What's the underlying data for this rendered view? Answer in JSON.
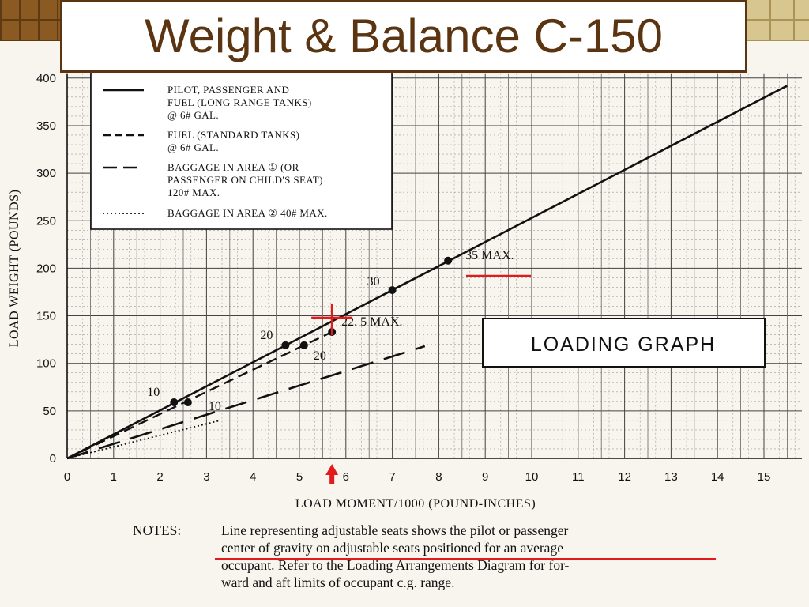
{
  "title": "Weight & Balance C-150",
  "colors": {
    "title": "#5b3512",
    "accent": "#e31a1c",
    "line": "#111111"
  },
  "chart_data": {
    "type": "line",
    "xlabel": "LOAD MOMENT/1000 (POUND-INCHES)",
    "ylabel": "LOAD WEIGHT (POUNDS)",
    "xlim": [
      0,
      15
    ],
    "ylim": [
      0,
      400
    ],
    "x_ticks": [
      0,
      1,
      2,
      3,
      4,
      5,
      6,
      7,
      8,
      9,
      10,
      11,
      12,
      13,
      14,
      15
    ],
    "y_ticks": [
      0,
      50,
      100,
      150,
      200,
      250,
      300,
      350,
      400
    ],
    "grid": true,
    "legend_position": "top-left",
    "series": [
      {
        "name": "PILOT, PASSENGER AND FUEL (LONG RANGE TANKS) @ 6# GAL.",
        "style": "solid",
        "x": [
          0,
          15.5
        ],
        "y": [
          0,
          392
        ],
        "markers": [
          {
            "x": 2.3,
            "y": 59,
            "label": "10"
          },
          {
            "x": 4.7,
            "y": 119,
            "label": "20"
          },
          {
            "x": 7.0,
            "y": 177,
            "label": "30"
          },
          {
            "x": 8.2,
            "y": 208,
            "label": "35 MAX."
          }
        ]
      },
      {
        "name": "FUEL (STANDARD TANKS) @ 6# GAL.",
        "style": "dashed",
        "x": [
          0,
          5.7
        ],
        "y": [
          0,
          133
        ],
        "markers": [
          {
            "x": 2.6,
            "y": 59,
            "label": "10"
          },
          {
            "x": 5.1,
            "y": 119,
            "label": "20"
          },
          {
            "x": 5.7,
            "y": 133,
            "label": "22. 5 MAX."
          }
        ]
      },
      {
        "name": "BAGGAGE IN AREA ① (OR PASSENGER ON CHILD'S SEAT) 120# MAX.",
        "style": "long-dash",
        "x": [
          0,
          7.7
        ],
        "y": [
          0,
          118
        ]
      },
      {
        "name": "BAGGAGE IN AREA ② 40# MAX.",
        "style": "dotted",
        "x": [
          0,
          3.3
        ],
        "y": [
          0,
          40
        ]
      }
    ],
    "legend": {
      "entries": [
        [
          "PILOT, PASSENGER AND",
          "FUEL (LONG RANGE TANKS)",
          "@ 6# GAL."
        ],
        [
          "FUEL (STANDARD TANKS)",
          "@ 6# GAL."
        ],
        [
          "BAGGAGE IN AREA ① (OR",
          "PASSENGER ON CHILD'S SEAT)",
          "120# MAX."
        ],
        [
          "BAGGAGE IN AREA ② 40# MAX."
        ]
      ]
    },
    "annotations": {
      "loading_graph_label": "LOADING GRAPH",
      "red_cross": {
        "x": 5.7,
        "y": 148
      },
      "red_arrow_x": 5.7,
      "red_underline_label": "35 MAX."
    }
  },
  "notes": {
    "label": "NOTES:",
    "lines": [
      "Line representing adjustable seats shows the pilot or passenger",
      "center of gravity on adjustable seats positioned for an average",
      "occupant.  Refer to the Loading Arrangements Diagram for for-",
      "ward and aft limits of occupant c.g. range."
    ]
  }
}
